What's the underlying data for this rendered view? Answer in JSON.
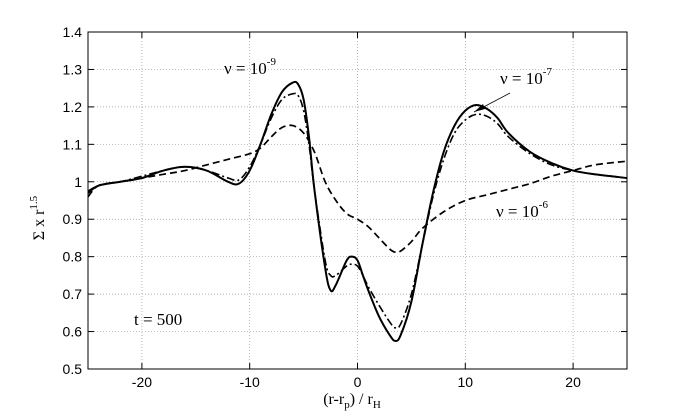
{
  "chart_data": {
    "type": "line",
    "xlabel": "(r-r",
    "xlabel_sub": "p",
    "xlabel_tail": ") / r",
    "xlabel_sub2": "H",
    "ylabel": "Σ x r",
    "ylabel_sup": "1.5",
    "xlim": [
      -25,
      25
    ],
    "ylim": [
      0.5,
      1.4
    ],
    "xticks": [
      -20,
      -10,
      0,
      10,
      20
    ],
    "xtick_labels": [
      "-20",
      "-10",
      "0",
      "10",
      "20"
    ],
    "yticks": [
      0.5,
      0.6,
      0.7,
      0.8,
      0.9,
      1.0,
      1.1,
      1.2,
      1.3,
      1.4
    ],
    "ytick_labels": [
      "0.5",
      "0.6",
      "0.7",
      "0.8",
      "0.9",
      "1",
      "1.1",
      "1.2",
      "1.3",
      "1.4"
    ],
    "grid": true,
    "series": [
      {
        "name": "ν = 10⁻⁹",
        "style": "solid",
        "x": [
          -25,
          -24,
          -22,
          -20,
          -18,
          -16,
          -14,
          -12,
          -11,
          -10,
          -9,
          -8,
          -7,
          -6,
          -5.5,
          -5,
          -4.5,
          -4,
          -3,
          -2.5,
          -2,
          -1,
          -0.5,
          0,
          0.5,
          1,
          2,
          3,
          3.5,
          4,
          5,
          6,
          7,
          8,
          9,
          10,
          11,
          12,
          13,
          14,
          16,
          18,
          20,
          22,
          25
        ],
        "values": [
          0.97,
          0.99,
          1.0,
          1.01,
          1.03,
          1.04,
          1.03,
          1.0,
          0.995,
          1.03,
          1.1,
          1.18,
          1.24,
          1.265,
          1.26,
          1.22,
          1.12,
          0.98,
          0.77,
          0.71,
          0.725,
          0.79,
          0.8,
          0.79,
          0.75,
          0.71,
          0.64,
          0.59,
          0.575,
          0.59,
          0.68,
          0.83,
          0.97,
          1.08,
          1.15,
          1.19,
          1.205,
          1.195,
          1.17,
          1.13,
          1.08,
          1.05,
          1.03,
          1.02,
          1.01
        ]
      },
      {
        "name": "ν = 10⁻⁷",
        "style": "dashdot",
        "x": [
          -25,
          -24,
          -22,
          -20,
          -18,
          -16,
          -14,
          -12,
          -11,
          -10,
          -9,
          -8,
          -7,
          -6,
          -5.5,
          -5,
          -4.5,
          -4,
          -3,
          -2.5,
          -2,
          -1,
          -0.5,
          0,
          0.5,
          1,
          2,
          3,
          3.5,
          4,
          5,
          6,
          7,
          8,
          9,
          10,
          11,
          12,
          13,
          14,
          16,
          18,
          20,
          22,
          25
        ],
        "values": [
          0.975,
          0.99,
          1.0,
          1.015,
          1.03,
          1.04,
          1.03,
          1.01,
          1.005,
          1.04,
          1.1,
          1.17,
          1.22,
          1.235,
          1.23,
          1.19,
          1.1,
          0.98,
          0.79,
          0.75,
          0.75,
          0.775,
          0.78,
          0.775,
          0.75,
          0.72,
          0.67,
          0.625,
          0.61,
          0.62,
          0.7,
          0.83,
          0.96,
          1.06,
          1.13,
          1.165,
          1.18,
          1.175,
          1.155,
          1.12,
          1.075,
          1.045,
          1.03,
          1.02,
          1.01
        ]
      },
      {
        "name": "ν = 10⁻⁶",
        "style": "dashed",
        "x": [
          -25,
          -24,
          -22,
          -20,
          -18,
          -16,
          -14,
          -12,
          -10,
          -9,
          -8,
          -7,
          -6,
          -5,
          -4,
          -3,
          -2,
          -1,
          0,
          1,
          2,
          3,
          3.5,
          4,
          5,
          6,
          8,
          10,
          12,
          14,
          16,
          18,
          20,
          22,
          25
        ],
        "values": [
          0.96,
          0.99,
          1.0,
          1.01,
          1.02,
          1.03,
          1.045,
          1.06,
          1.075,
          1.09,
          1.12,
          1.145,
          1.15,
          1.13,
          1.08,
          1.0,
          0.95,
          0.915,
          0.9,
          0.88,
          0.85,
          0.82,
          0.812,
          0.815,
          0.84,
          0.875,
          0.92,
          0.95,
          0.965,
          0.98,
          0.995,
          1.015,
          1.03,
          1.045,
          1.055
        ]
      }
    ],
    "annotations": [
      {
        "base": "ν = 10",
        "exp": "-9"
      },
      {
        "base": "ν = 10",
        "exp": "-7"
      },
      {
        "base": "ν = 10",
        "exp": "-6"
      },
      {
        "text": "t = 500"
      }
    ]
  }
}
